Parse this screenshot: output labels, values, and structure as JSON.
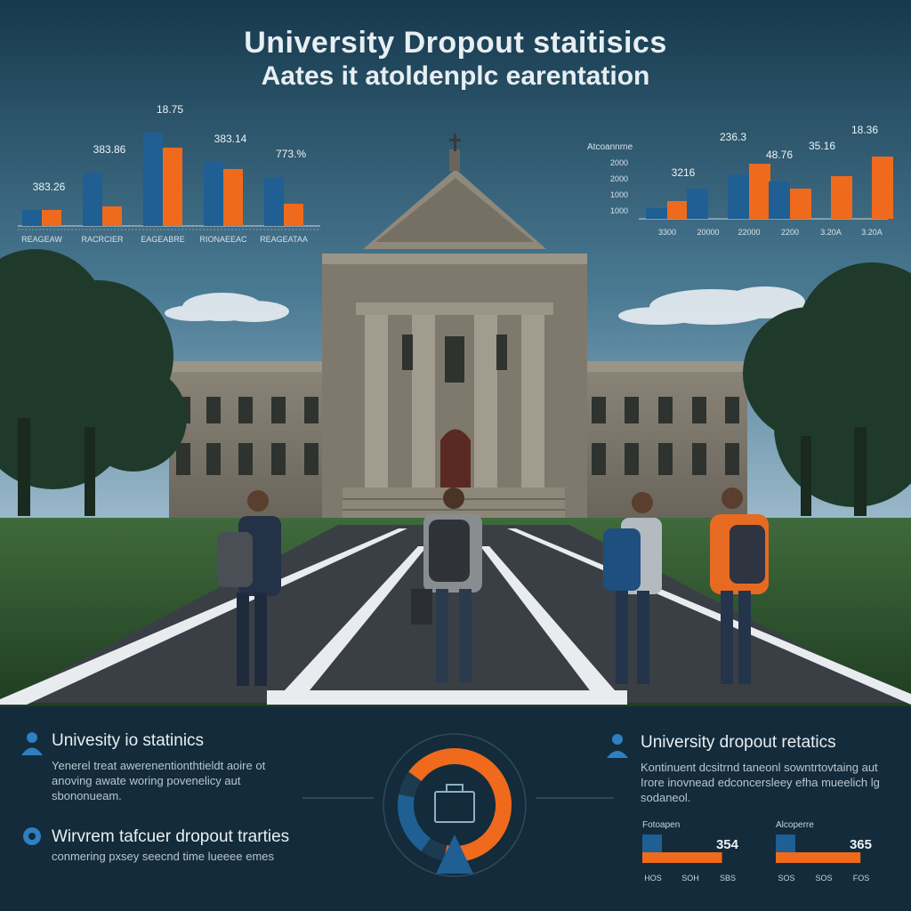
{
  "header": {
    "title": "University Dropout staitisics",
    "subtitle": "Aates it atoldenplc earentation"
  },
  "colors": {
    "blue": "#1f5f93",
    "orange": "#ef6a1c",
    "sky_top": "#1c4a63",
    "sky_bottom": "#8fb0c4",
    "panel_bg": "#132b3a"
  },
  "chart_data": [
    {
      "type": "bar",
      "categories": [
        "REAGEAW",
        "RACRCIER",
        "EAGEABRE",
        "RIONAEEAC",
        "REAGEATAA"
      ],
      "series": [
        {
          "values": [
            18,
            60,
            105,
            72,
            55
          ]
        },
        {
          "values": [
            18,
            22,
            88,
            64,
            25
          ]
        }
      ],
      "annotations": [
        "383.26",
        "383.86",
        "18.75",
        "383.14",
        "773.%"
      ]
    },
    {
      "type": "bar",
      "ylabel": "Atcoannrne",
      "y_tick_labels": [
        "2000",
        "2000",
        "1000",
        "1000"
      ],
      "categories": [
        "3300",
        "20000",
        "22000",
        "2200",
        "3.20A",
        "3.20A"
      ],
      "series": [
        {
          "values": [
            12,
            34,
            50,
            42,
            0,
            0
          ]
        },
        {
          "values": [
            20,
            0,
            62,
            34,
            48,
            70
          ]
        }
      ],
      "annotations": [
        "3216",
        "236.3",
        "48.76",
        "35.16",
        "18.36"
      ]
    }
  ],
  "panels": {
    "left_top": {
      "title": "Univesity io statinics",
      "icon": "person-icon",
      "body": [
        "Yenerel treat awerenentionthtieldt aoire ot",
        "anoving awate woring povenelicy aut",
        "sbononueam."
      ]
    },
    "left_bottom": {
      "title": "Wirvrem tafcuer dropout trarties",
      "icon": "gear-icon",
      "body": [
        "conmering pxsey seecnd time lueeee emes"
      ]
    },
    "right_top": {
      "title": "University dropout retatics",
      "icon": "person-icon",
      "body": [
        "Kontinuent dcsitrnd taneonl sowntrtovtaing aut",
        "Irore inovnead edconcersleey efha mueelich lg",
        "sodaneol."
      ]
    },
    "center_icon": "briefcase-icon",
    "ring_values": {
      "orange_fraction": 0.68,
      "blue_fraction": 0.18
    }
  },
  "mini_charts": [
    {
      "label": "Fotoapen",
      "value": "354",
      "ticks": [
        "HOS",
        "SOH",
        "SBS"
      ],
      "fill_fraction": 0.8
    },
    {
      "label": "Alcoperre",
      "value": "365",
      "ticks": [
        "SOS",
        "SOS",
        "FOS"
      ],
      "fill_fraction": 0.85
    }
  ]
}
